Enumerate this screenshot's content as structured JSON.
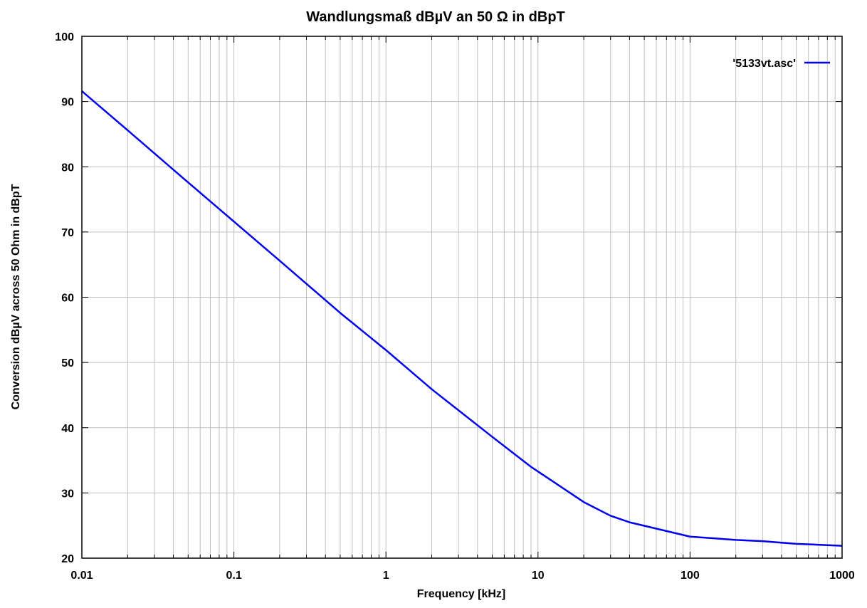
{
  "chart_data": {
    "type": "line",
    "title": "Wandlungsmaß dBµV an 50 Ω in dBpT",
    "xlabel": "Frequency [kHz]",
    "ylabel": "Conversion dBµV across 50 Ohm in dBpT",
    "x_scale": "log",
    "xlim": [
      0.01,
      1000
    ],
    "ylim": [
      20,
      100
    ],
    "x_ticks": [
      {
        "value": 0.01,
        "label": "0.01"
      },
      {
        "value": 0.1,
        "label": "0.1"
      },
      {
        "value": 1,
        "label": "1"
      },
      {
        "value": 10,
        "label": "10"
      },
      {
        "value": 100,
        "label": "100"
      },
      {
        "value": 1000,
        "label": "1000"
      }
    ],
    "y_ticks": [
      {
        "value": 20,
        "label": "20"
      },
      {
        "value": 30,
        "label": "30"
      },
      {
        "value": 40,
        "label": "40"
      },
      {
        "value": 50,
        "label": "50"
      },
      {
        "value": 60,
        "label": "60"
      },
      {
        "value": 70,
        "label": "70"
      },
      {
        "value": 80,
        "label": "80"
      },
      {
        "value": 90,
        "label": "90"
      },
      {
        "value": 100,
        "label": "100"
      }
    ],
    "grid": true,
    "legend_position": "top-right",
    "series": [
      {
        "name": "'5133vt.asc'",
        "color": "#0000ee",
        "x": [
          0.01,
          0.02,
          0.05,
          0.1,
          0.2,
          0.5,
          1,
          2,
          5,
          9,
          20,
          30,
          40,
          100,
          200,
          300,
          500,
          1000
        ],
        "y": [
          91.6,
          85.6,
          77.6,
          71.6,
          65.6,
          57.6,
          51.9,
          45.9,
          38.6,
          34.0,
          28.6,
          26.5,
          25.5,
          23.3,
          22.8,
          22.6,
          22.2,
          21.9
        ]
      }
    ]
  }
}
